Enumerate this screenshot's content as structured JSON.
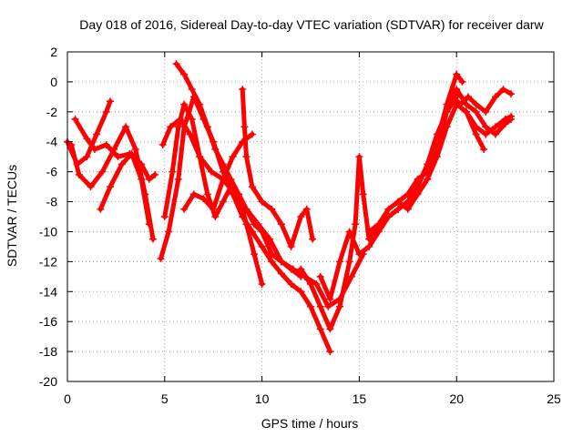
{
  "chart_data": {
    "type": "line",
    "title": "Day 018 of 2016, Sidereal Day-to-day VTEC variation (SDTVAR) for receiver darw",
    "xlabel": "GPS time / hours",
    "ylabel": "SDTVAR / TECUs",
    "xlim": [
      0,
      25
    ],
    "ylim": [
      -20,
      2
    ],
    "xticks": [
      0,
      5,
      10,
      15,
      20,
      25
    ],
    "yticks": [
      2,
      0,
      -2,
      -4,
      -6,
      -8,
      -10,
      -12,
      -14,
      -16,
      -18,
      -20
    ],
    "grid": true,
    "marker": "+",
    "color": "#ff0000",
    "series": [
      {
        "x": [
          0.0,
          0.5,
          1.0,
          1.5,
          2.0,
          2.2
        ],
        "y": [
          -4.0,
          -5.5,
          -5.0,
          -3.5,
          -2.0,
          -1.3
        ]
      },
      {
        "x": [
          0.2,
          0.6,
          1.2,
          1.8,
          2.4,
          3.0,
          3.5,
          4.0,
          4.4
        ],
        "y": [
          -4.2,
          -6.2,
          -7.0,
          -6.0,
          -4.5,
          -3.0,
          -4.5,
          -7.5,
          -10.5
        ]
      },
      {
        "x": [
          0.4,
          1.0,
          1.4,
          2.0,
          2.6,
          3.2,
          3.8,
          4.2,
          4.5
        ],
        "y": [
          -2.5,
          -3.8,
          -4.5,
          -4.2,
          -5.0,
          -4.8,
          -5.5,
          -6.5,
          -6.2
        ]
      },
      {
        "x": [
          1.7,
          2.2,
          2.8,
          3.3,
          3.8,
          4.2
        ],
        "y": [
          -8.5,
          -7.0,
          -5.5,
          -4.8,
          -6.5,
          -9.5
        ]
      },
      {
        "x": [
          4.8,
          5.2,
          5.7,
          6.0,
          6.5,
          7.0,
          7.5,
          8.0,
          8.5,
          9.0,
          9.5,
          10.0,
          10.5,
          11.0,
          11.5,
          12.0,
          12.5,
          13.0,
          13.5
        ],
        "y": [
          -11.8,
          -10.0,
          -6.5,
          -3.0,
          -1.0,
          -2.5,
          -4.0,
          -6.0,
          -7.5,
          -9.0,
          -10.0,
          -11.0,
          -12.0,
          -12.8,
          -13.5,
          -14.0,
          -15.0,
          -16.5,
          -18.0
        ]
      },
      {
        "x": [
          5.0,
          5.4,
          5.7,
          6.0,
          6.4,
          6.8,
          7.2,
          7.6,
          8.0,
          8.4,
          8.8,
          9.2,
          9.6,
          10.0
        ],
        "y": [
          -9.0,
          -6.0,
          -3.0,
          -1.5,
          -2.5,
          -5.0,
          -7.5,
          -9.0,
          -8.0,
          -7.0,
          -7.5,
          -9.5,
          -11.5,
          -13.5
        ]
      },
      {
        "x": [
          5.6,
          6.0,
          6.4,
          6.8,
          7.2,
          7.6,
          8.0,
          8.4,
          8.8,
          9.2,
          9.6,
          10.0,
          10.5,
          11.0,
          11.5,
          12.0
        ],
        "y": [
          1.2,
          0.5,
          -0.5,
          -1.5,
          -3.0,
          -4.5,
          -5.5,
          -6.5,
          -7.5,
          -8.5,
          -9.5,
          -10.0,
          -11.5,
          -12.0,
          -12.5,
          -13.0
        ]
      },
      {
        "x": [
          4.9,
          5.3,
          5.8,
          6.3,
          6.8,
          7.4,
          8.0,
          8.6,
          9.2,
          9.8,
          10.4,
          11.0,
          11.6,
          12.2,
          12.8,
          13.4,
          14.0,
          14.6,
          15.2
        ],
        "y": [
          -4.2,
          -3.0,
          -2.5,
          -3.5,
          -5.0,
          -6.0,
          -6.5,
          -7.5,
          -8.5,
          -9.5,
          -10.5,
          -12.0,
          -12.5,
          -13.0,
          -13.5,
          -15.0,
          -14.5,
          -13.0,
          -11.5
        ]
      },
      {
        "x": [
          6.0,
          6.5,
          7.0,
          7.5,
          8.0,
          8.5,
          9.0,
          9.5
        ],
        "y": [
          -8.5,
          -7.5,
          -7.8,
          -8.5,
          -6.5,
          -5.0,
          -4.0,
          -3.5
        ]
      },
      {
        "x": [
          9.0,
          9.1,
          9.2,
          9.5,
          10.0,
          10.5,
          11.0,
          11.5,
          12.0,
          12.3,
          12.6
        ],
        "y": [
          -0.5,
          -3.0,
          -5.0,
          -7.0,
          -8.0,
          -8.5,
          -9.5,
          -11.0,
          -9.0,
          -8.5,
          -10.5
        ]
      },
      {
        "x": [
          12.0,
          12.5,
          13.0,
          13.5,
          14.0,
          14.5,
          14.8,
          15.0,
          15.2,
          15.5,
          16.0,
          16.5,
          17.0,
          17.5,
          18.0,
          18.5,
          19.0,
          19.5,
          20.0,
          20.3
        ],
        "y": [
          -12.5,
          -13.5,
          -15.0,
          -16.5,
          -15.0,
          -12.0,
          -9.5,
          -5.0,
          -7.5,
          -10.5,
          -9.5,
          -9.0,
          -8.5,
          -8.0,
          -7.5,
          -6.5,
          -4.0,
          -1.5,
          0.5,
          0.0
        ]
      },
      {
        "x": [
          13.0,
          13.5,
          14.0,
          14.5,
          15.0,
          15.5,
          16.0,
          16.5,
          17.0,
          17.5,
          18.0,
          18.5,
          19.0,
          19.5,
          20.0
        ],
        "y": [
          -13.0,
          -14.5,
          -12.0,
          -10.0,
          -11.5,
          -11.0,
          -10.0,
          -9.0,
          -8.5,
          -8.0,
          -7.0,
          -5.5,
          -3.5,
          -2.0,
          -1.0
        ]
      },
      {
        "x": [
          15.5,
          16.0,
          16.5,
          17.0,
          17.5,
          18.0,
          18.5,
          19.0,
          19.5,
          20.0,
          20.5,
          21.0,
          21.5,
          22.0,
          22.5,
          22.8
        ],
        "y": [
          -10.0,
          -9.5,
          -8.5,
          -8.0,
          -7.5,
          -6.5,
          -6.0,
          -4.5,
          -2.0,
          -0.5,
          -1.5,
          -2.0,
          -3.0,
          -3.5,
          -2.8,
          -2.5
        ]
      },
      {
        "x": [
          17.0,
          17.5,
          18.0,
          18.5,
          19.0,
          19.5,
          20.0,
          20.5,
          21.0,
          21.4
        ],
        "y": [
          -8.0,
          -8.5,
          -7.5,
          -6.5,
          -5.0,
          -3.0,
          -1.5,
          -2.0,
          -3.5,
          -4.5
        ]
      },
      {
        "x": [
          19.8,
          20.2,
          20.6,
          21.0,
          21.5,
          22.0,
          22.4,
          22.8
        ],
        "y": [
          -1.0,
          -1.5,
          -1.0,
          -1.5,
          -2.0,
          -1.0,
          -0.5,
          -0.8
        ]
      },
      {
        "x": [
          20.5,
          21.0,
          21.5,
          22.0,
          22.5,
          22.8
        ],
        "y": [
          -2.0,
          -3.0,
          -3.5,
          -3.0,
          -2.5,
          -2.3
        ]
      }
    ]
  }
}
